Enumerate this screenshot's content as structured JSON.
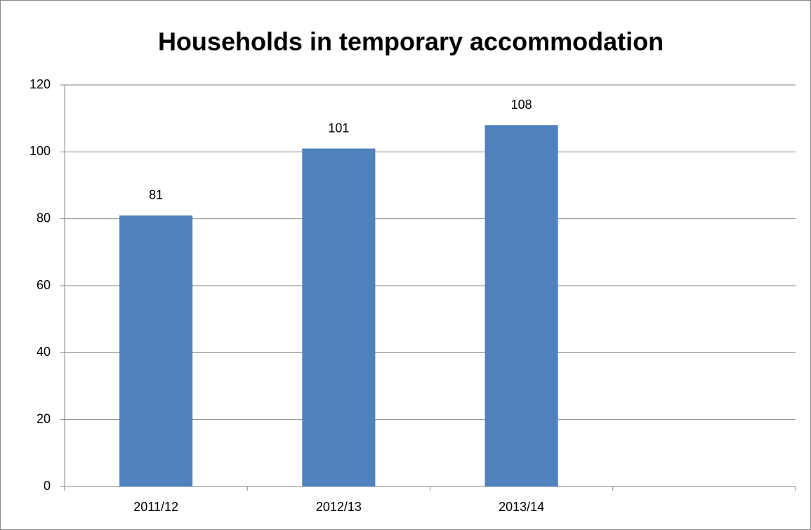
{
  "chart_data": {
    "type": "bar",
    "title": "Households in temporary accommodation",
    "categories": [
      "2011/12",
      "2012/13",
      "2013/14",
      null
    ],
    "values": [
      81,
      101,
      108,
      null
    ],
    "color": "#4f81bd",
    "ylim": [
      0,
      120
    ],
    "yticks": [
      0,
      20,
      40,
      60,
      80,
      100,
      120
    ],
    "grid": true
  }
}
